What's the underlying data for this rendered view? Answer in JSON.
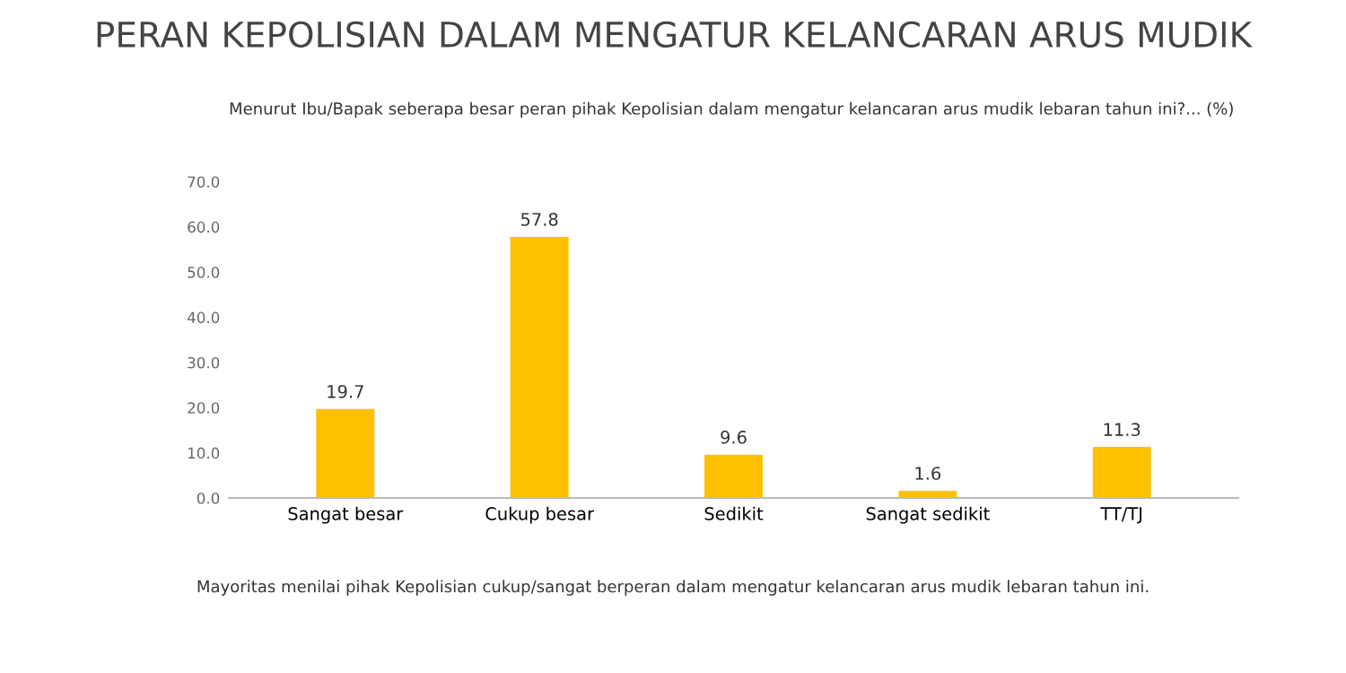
{
  "chart_data": {
    "type": "bar",
    "title": "PERAN KEPOLISIAN DALAM MENGATUR KELANCARAN ARUS MUDIK",
    "subtitle": "Menurut Ibu/Bapak seberapa besar peran pihak Kepolisian dalam mengatur kelancaran arus mudik lebaran tahun ini?... (%)",
    "categories": [
      "Sangat besar",
      "Cukup besar",
      "Sedikit",
      "Sangat sedikit",
      "TT/TJ"
    ],
    "values": [
      19.7,
      57.8,
      9.6,
      1.6,
      11.3
    ],
    "color": "#ffc000",
    "ylim": [
      0,
      70
    ],
    "yticks": [
      {
        "value": 0,
        "label": "0.0"
      },
      {
        "value": 10,
        "label": "10.0"
      },
      {
        "value": 20,
        "label": "20.0"
      },
      {
        "value": 30,
        "label": "30.0"
      },
      {
        "value": 40,
        "label": "40.0"
      },
      {
        "value": 50,
        "label": "50.0"
      },
      {
        "value": 60,
        "label": "60.0"
      },
      {
        "value": 70,
        "label": "70.0"
      }
    ],
    "grid": false,
    "data_labels": true,
    "annotations": [
      "Mayoritas menilai pihak Kepolisian cukup/sangat berperan dalam mengatur kelancaran arus mudik lebaran tahun ini."
    ]
  }
}
